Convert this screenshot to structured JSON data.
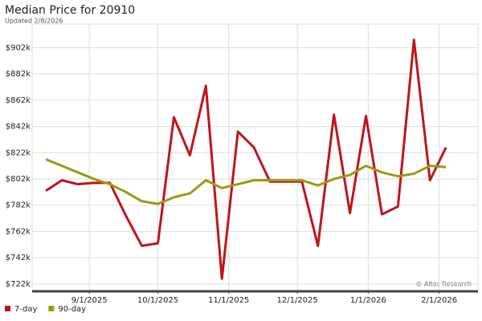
{
  "chart_data": {
    "type": "line",
    "title": "Median Price for 20910",
    "subtitle": "Updated 2/8/2026",
    "annotation": "© Altos Research",
    "x": [
      "8/13/2025",
      "8/20/2025",
      "8/27/2025",
      "9/3/2025",
      "9/10/2025",
      "9/17/2025",
      "9/24/2025",
      "10/1/2025",
      "10/8/2025",
      "10/15/2025",
      "10/22/2025",
      "10/29/2025",
      "11/5/2025",
      "11/12/2025",
      "11/19/2025",
      "11/26/2025",
      "12/3/2025",
      "12/10/2025",
      "12/17/2025",
      "12/24/2025",
      "12/31/2025",
      "1/7/2026",
      "1/14/2026",
      "1/21/2026",
      "1/28/2026",
      "2/4/2026"
    ],
    "series": [
      {
        "name": "7-day",
        "color": "#c0141c",
        "values": [
          793,
          801,
          798,
          799,
          799,
          774,
          751,
          753,
          849,
          820,
          873,
          726,
          838,
          826,
          800,
          800,
          800,
          751,
          851,
          776,
          850,
          775,
          781,
          908,
          801,
          826
        ]
      },
      {
        "name": "90-day",
        "color": "#9a9a16",
        "values": [
          817,
          812,
          807,
          802,
          798,
          792,
          785,
          783,
          788,
          791,
          801,
          795,
          798,
          801,
          801,
          801,
          801,
          797,
          802,
          805,
          812,
          807,
          804,
          806,
          812,
          811
        ]
      }
    ],
    "xlim": [
      "8/7/2025",
      "2/18/2026"
    ],
    "xticks": [
      "9/1/2025",
      "10/1/2025",
      "11/1/2025",
      "12/1/2025",
      "1/1/2026",
      "2/1/2026"
    ],
    "ylim": [
      717,
      920
    ],
    "yticks": [
      {
        "value": 722,
        "label": "$722k"
      },
      {
        "value": 742,
        "label": "$742k"
      },
      {
        "value": 762,
        "label": "$762k"
      },
      {
        "value": 782,
        "label": "$782k"
      },
      {
        "value": 802,
        "label": "$802k"
      },
      {
        "value": 822,
        "label": "$822k"
      },
      {
        "value": 842,
        "label": "$842k"
      },
      {
        "value": 862,
        "label": "$862k"
      },
      {
        "value": 882,
        "label": "$882k"
      },
      {
        "value": 902,
        "label": "$902k"
      }
    ],
    "grid": true
  }
}
